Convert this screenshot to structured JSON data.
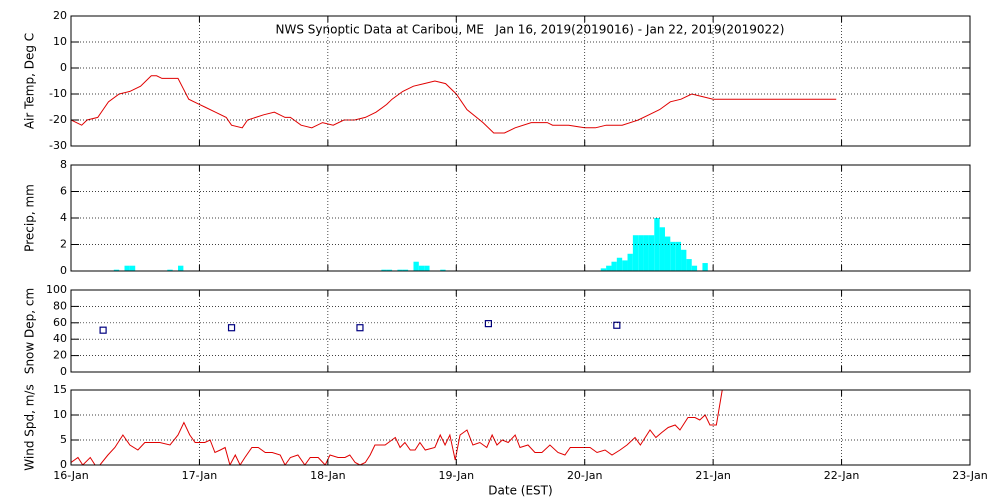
{
  "chart_data": [
    {
      "type": "line",
      "title": "NWS Synoptic Data at Caribou, ME   Jan 16, 2019(2019016) - Jan 22, 2019(2019022)",
      "ylabel": "Air Temp, Deg C",
      "color": "#e00000",
      "grid": true,
      "xlim": [
        0,
        168
      ],
      "xticks": [
        0,
        24,
        48,
        72,
        96,
        120,
        144,
        168
      ],
      "ylim": [
        -30,
        20
      ],
      "yticks": [
        -30,
        -20,
        -10,
        0,
        10,
        20
      ],
      "x": [
        0,
        2,
        3,
        5,
        6,
        7,
        9,
        11,
        13,
        15,
        16,
        17,
        20,
        21,
        22,
        24,
        25,
        27,
        29,
        30,
        32,
        33,
        36,
        38,
        40,
        41,
        43,
        45,
        47,
        49,
        51,
        53,
        55,
        57,
        59,
        60,
        62,
        64,
        66,
        68,
        70,
        72,
        74,
        77,
        79,
        81,
        83,
        86,
        89,
        90,
        93,
        96,
        98,
        100,
        103,
        106,
        108,
        110,
        112,
        114,
        116,
        118,
        120,
        121,
        143
      ],
      "values": [
        -20,
        -22,
        -20,
        -19,
        -16,
        -13,
        -10,
        -9,
        -7,
        -3,
        -3,
        -4,
        -4,
        -8,
        -12,
        -14,
        -15,
        -17,
        -19,
        -22,
        -23,
        -20,
        -18,
        -17,
        -19,
        -19,
        -22,
        -23,
        -21,
        -22,
        -20,
        -20,
        -19,
        -17,
        -14,
        -12,
        -9,
        -7,
        -6,
        -5,
        -6,
        -10,
        -16,
        -21,
        -25,
        -25,
        -23,
        -21,
        -21,
        -22,
        -22,
        -23,
        -23,
        -22,
        -22,
        -20,
        -18,
        -16,
        -13,
        -12,
        -10,
        -11,
        -12,
        -12,
        -12
      ]
    },
    {
      "type": "bar",
      "ylabel": "Precip, mm",
      "color": "#00ffff",
      "grid": true,
      "xlim": [
        0,
        168
      ],
      "xticks": [
        0,
        24,
        48,
        72,
        96,
        120,
        144,
        168
      ],
      "ylim": [
        0,
        8
      ],
      "yticks": [
        0,
        2,
        4,
        6,
        8
      ],
      "x": [
        8,
        10,
        11,
        18,
        20,
        58,
        59,
        61,
        62,
        64,
        65,
        66,
        69,
        99,
        100,
        101,
        102,
        103,
        104,
        105,
        106,
        107,
        108,
        109,
        110,
        111,
        112,
        113,
        114,
        115,
        116,
        118
      ],
      "values": [
        0.1,
        0.4,
        0.4,
        0.1,
        0.4,
        0.1,
        0.1,
        0.1,
        0.1,
        0.7,
        0.4,
        0.4,
        0.1,
        0.2,
        0.4,
        0.7,
        1.0,
        0.8,
        1.3,
        2.7,
        2.7,
        2.7,
        2.7,
        4.0,
        3.3,
        2.6,
        2.2,
        2.2,
        1.6,
        0.9,
        0.4,
        0.6
      ]
    },
    {
      "type": "scatter",
      "ylabel": "Snow Dep, cm",
      "color": "#000080",
      "grid": true,
      "xlim": [
        0,
        168
      ],
      "xticks": [
        0,
        24,
        48,
        72,
        96,
        120,
        144,
        168
      ],
      "ylim": [
        0,
        100
      ],
      "yticks": [
        0,
        20,
        40,
        60,
        80,
        100
      ],
      "x": [
        6,
        30,
        54,
        78,
        102
      ],
      "values": [
        51,
        54,
        54,
        59,
        57
      ]
    },
    {
      "type": "line",
      "ylabel": "Wind Spd, m/s",
      "xlabel": "Date (EST)",
      "color": "#e00000",
      "grid": true,
      "xlim": [
        0,
        168
      ],
      "xticks": [
        {
          "value": 0,
          "label": "16-Jan"
        },
        {
          "value": 24,
          "label": "17-Jan"
        },
        {
          "value": 48,
          "label": "18-Jan"
        },
        {
          "value": 72,
          "label": "19-Jan"
        },
        {
          "value": 96,
          "label": "20-Jan"
        },
        {
          "value": 120,
          "label": "21-Jan"
        },
        {
          "value": 144,
          "label": "22-Jan"
        },
        {
          "value": 168,
          "label": "23-Jan"
        }
      ],
      "ylim": [
        0,
        15
      ],
      "yticks": [
        0,
        5,
        10,
        15
      ],
      "x": [
        0,
        1.3,
        2.2,
        3.6,
        4.5,
        5.4,
        6.9,
        8.2,
        9.7,
        11,
        12.5,
        13.8,
        16.6,
        18.5,
        20,
        21.1,
        22.2,
        23.2,
        25,
        26,
        26.9,
        27.9,
        28.8,
        29.7,
        30.7,
        31.6,
        32.5,
        33.8,
        35,
        36.3,
        37.6,
        39.1,
        40,
        41,
        42.4,
        43.7,
        44.7,
        46.2,
        47.5,
        48.4,
        49.9,
        51.2,
        52.1,
        53.1,
        54,
        55,
        55.9,
        56.8,
        58.7,
        60.6,
        61.5,
        62.4,
        63.4,
        64.3,
        65.2,
        66.2,
        68,
        69,
        69.9,
        70.8,
        71.8,
        72.7,
        74,
        75.1,
        76.4,
        77.7,
        78.7,
        79.6,
        80.6,
        81.7,
        83,
        83.9,
        85.4,
        86.7,
        88,
        89.5,
        91,
        92.3,
        93.3,
        95.1,
        97,
        98.3,
        99.8,
        101.1,
        102.6,
        103.9,
        105.4,
        106.4,
        107.3,
        108.2,
        109.3,
        110.4,
        111.6,
        112.9,
        113.8,
        115.3,
        116.6,
        117.5,
        118.5,
        119.4,
        120.6,
        121.7
      ],
      "values": [
        0.5,
        1.5,
        0,
        1.5,
        0,
        0,
        2,
        3.5,
        6,
        4,
        3,
        4.5,
        4.5,
        4,
        6,
        8.5,
        6,
        4.5,
        4.5,
        5,
        2.5,
        3,
        3.5,
        0,
        2,
        0,
        1.5,
        3.5,
        3.5,
        2.5,
        2.5,
        2,
        0,
        1.5,
        2,
        0,
        1.5,
        1.5,
        0,
        2,
        1.5,
        1.5,
        2,
        0.5,
        0,
        0.5,
        2,
        4,
        4,
        5.5,
        3.5,
        4.5,
        3,
        3,
        4.5,
        3,
        3.5,
        6,
        4,
        6,
        1,
        6,
        7,
        4,
        4.5,
        3.5,
        6,
        4,
        5,
        4.5,
        6,
        3.5,
        4,
        2.5,
        2.5,
        4,
        2.5,
        2,
        3.5,
        3.5,
        3.5,
        2.5,
        3,
        2,
        3,
        4,
        5.5,
        4,
        5.5,
        7,
        5.5,
        6.5,
        7.5,
        8,
        7,
        9.5,
        9.5,
        9,
        10,
        8,
        8,
        15
      ]
    }
  ]
}
